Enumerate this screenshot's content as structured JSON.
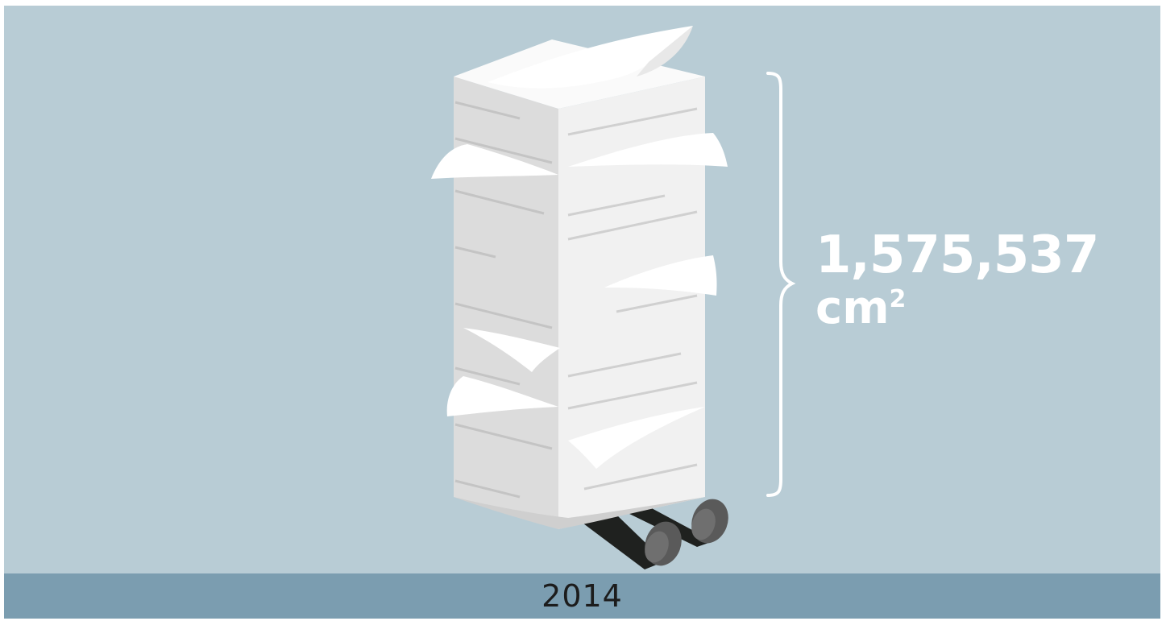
{
  "stat": {
    "value": "1,575,537",
    "unit_base": "cm",
    "unit_exponent": "2"
  },
  "footer": {
    "year": "2014"
  },
  "icons": [
    "paper-stack-illustration",
    "hand-truck-icon",
    "curly-brace-icon"
  ],
  "colors": {
    "background": "#b8ccd5",
    "footer_bar": "#7b9db0",
    "text_light": "#ffffff",
    "text_dark": "#1c1c1c"
  }
}
